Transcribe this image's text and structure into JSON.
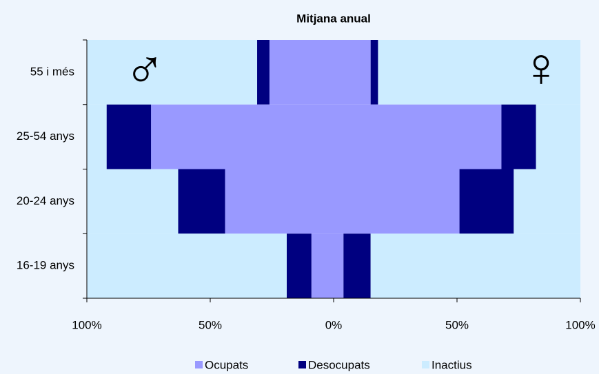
{
  "chart_data": {
    "type": "pyramid",
    "title": "Mitjana anual",
    "categories": [
      "55 i més",
      "25-54 anys",
      "20-24 anys",
      "16-19 anys"
    ],
    "series": [
      {
        "name": "Ocupats",
        "color": "#9999ff",
        "male": [
          26,
          74,
          44,
          9
        ],
        "female": [
          15,
          68,
          51,
          4
        ]
      },
      {
        "name": "Desocupats",
        "color": "#000080",
        "male": [
          5,
          18,
          19,
          10
        ],
        "female": [
          3,
          14,
          22,
          11
        ]
      },
      {
        "name": "Inactius",
        "color": "#ccecff",
        "male": [
          69,
          8,
          37,
          81
        ],
        "female": [
          82,
          18,
          27,
          85
        ]
      }
    ],
    "annotations": [
      "♂",
      "♀"
    ],
    "xlim": [
      -100,
      100
    ],
    "xticks": [
      {
        "value": -100,
        "label": "100%"
      },
      {
        "value": -50,
        "label": "50%"
      },
      {
        "value": 0,
        "label": "0%"
      },
      {
        "value": 50,
        "label": "50%"
      },
      {
        "value": 100,
        "label": "100%"
      }
    ]
  }
}
